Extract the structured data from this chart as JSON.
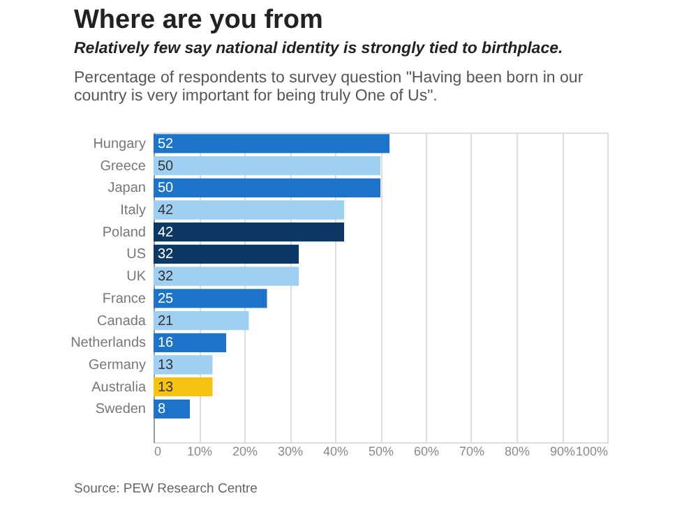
{
  "chart_data": {
    "type": "bar",
    "orientation": "horizontal",
    "title": "Where are you from",
    "subtitle": "Relatively few say national identity is strongly tied to birthplace.",
    "annotations": [
      "Percentage of respondents to survey question \"Having been born in our country is very important for being truly One of Us\".",
      "Source: PEW Research Centre"
    ],
    "categories": [
      "Hungary",
      "Greece",
      "Japan",
      "Italy",
      "Poland",
      null,
      "US",
      "UK",
      "France",
      "Canada",
      "Netherlands",
      "Germany",
      "Australia",
      "Sweden"
    ],
    "values": [
      52,
      50,
      50,
      42,
      42,
      null,
      32,
      32,
      25,
      21,
      16,
      13,
      13,
      8
    ],
    "colors": [
      "#1c74c9",
      "#9fd0f4",
      "#1c74c9",
      "#9fd0f4",
      "#0c3963",
      "#0c3963",
      "#0c3963",
      "#9fd0f4",
      "#1c74c9",
      "#9fd0f4",
      "#1c74c9",
      "#9fd0f4",
      "#f5c211",
      "#1c74c9"
    ],
    "xlim": [
      0,
      100
    ],
    "xticks": [
      0,
      {
        "value": 10,
        "label": "10%"
      },
      {
        "value": 20,
        "label": "20%"
      },
      {
        "value": 30,
        "label": "30%"
      },
      {
        "value": 40,
        "label": "40%"
      },
      {
        "value": 50,
        "label": "50%"
      },
      {
        "value": 60,
        "label": "60%"
      },
      {
        "value": 70,
        "label": "70%"
      },
      {
        "value": 80,
        "label": "80%"
      },
      {
        "value": 90,
        "label": "90%"
      },
      {
        "value": 100,
        "label": "100%"
      }
    ],
    "data_labels": true,
    "grid": "x"
  }
}
